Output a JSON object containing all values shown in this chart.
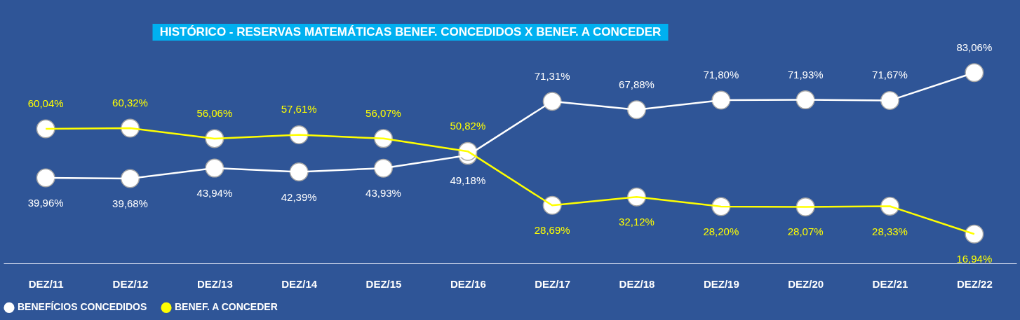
{
  "chart_data": {
    "type": "line",
    "title": "HISTÓRICO - RESERVAS MATEMÁTICAS BENEF. CONCEDIDOS X BENEF. A CONCEDER",
    "categories": [
      "DEZ/11",
      "DEZ/12",
      "DEZ/13",
      "DEZ/14",
      "DEZ/15",
      "DEZ/16",
      "DEZ/17",
      "DEZ/18",
      "DEZ/19",
      "DEZ/20",
      "DEZ/21",
      "DEZ/22"
    ],
    "series": [
      {
        "name": "BENEFÍCIOS  CONCEDIDOS",
        "color": "#ffffff",
        "values": [
          39.96,
          39.68,
          43.94,
          42.39,
          43.93,
          49.18,
          71.31,
          67.88,
          71.8,
          71.93,
          71.67,
          83.06
        ],
        "value_labels": [
          "39,96%",
          "39,68%",
          "43,94%",
          "42,39%",
          "43,93%",
          "49,18%",
          "71,31%",
          "67,88%",
          "71,80%",
          "71,93%",
          "71,67%",
          "83,06%"
        ]
      },
      {
        "name": "BENEF. A CONCEDER",
        "color": "#ffff00",
        "values": [
          60.04,
          60.32,
          56.06,
          57.61,
          56.07,
          50.82,
          28.69,
          32.12,
          28.2,
          28.07,
          28.33,
          16.94
        ],
        "value_labels": [
          "60,04%",
          "60,32%",
          "56,06%",
          "57,61%",
          "56,07%",
          "50,82%",
          "28,69%",
          "32,12%",
          "28,20%",
          "28,07%",
          "28,33%",
          "16,94%"
        ]
      }
    ],
    "marker": "circle",
    "line_style": "solid",
    "legend": "bottom"
  }
}
